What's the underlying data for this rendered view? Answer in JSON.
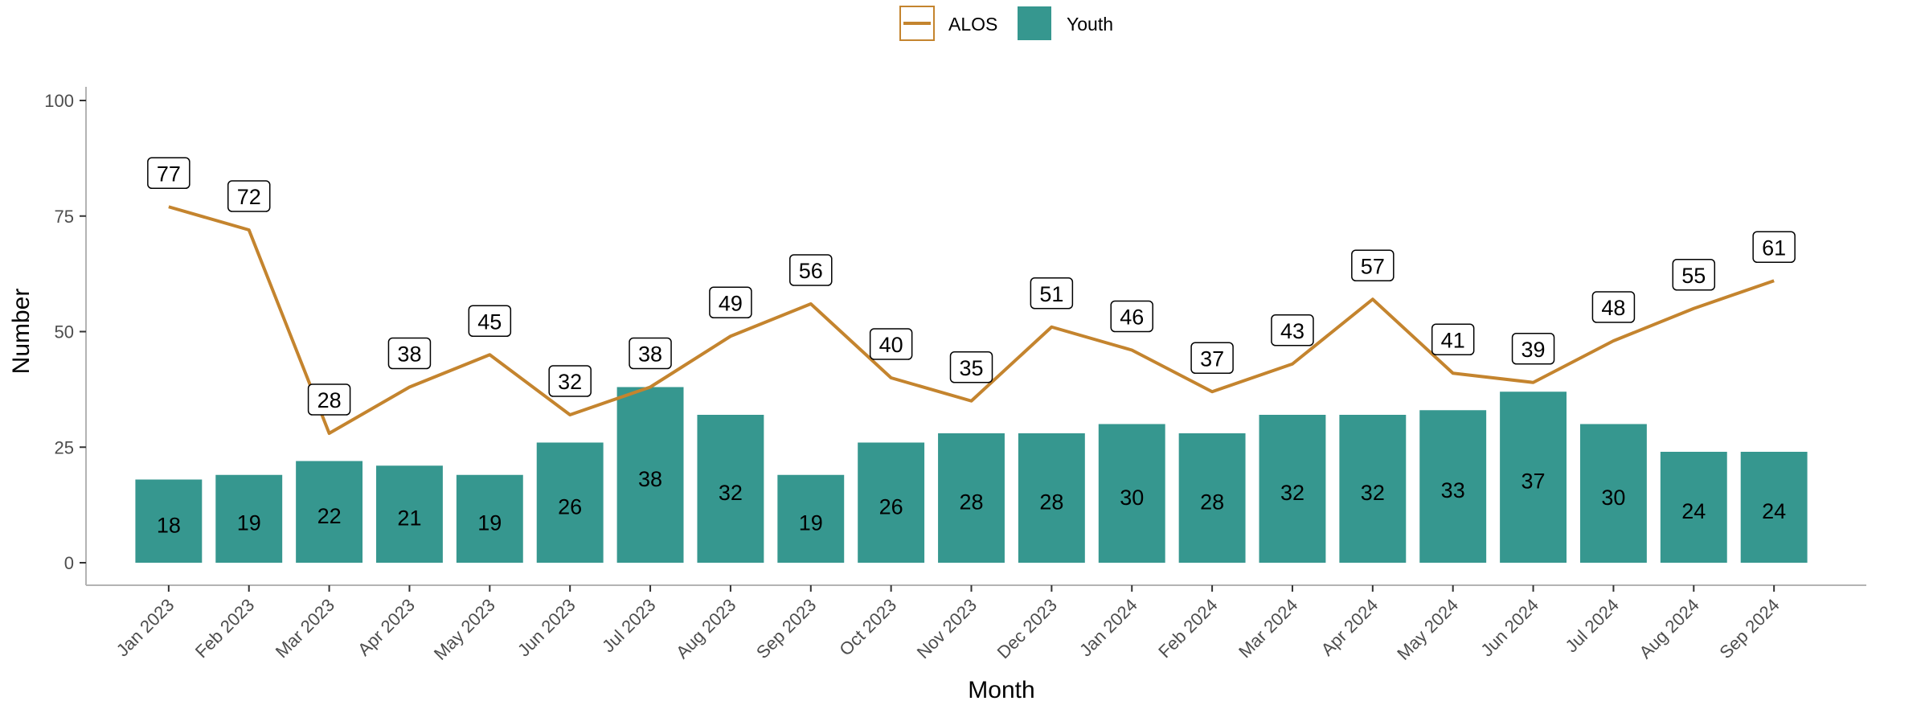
{
  "chart_data": {
    "type": "bar",
    "title": "",
    "xlabel": "Month",
    "ylabel": "Number",
    "ylim": [
      0,
      100
    ],
    "yticks": [
      0,
      25,
      50,
      75,
      100
    ],
    "grid": false,
    "legend_position": "top",
    "categories": [
      "Jan 2023",
      "Feb 2023",
      "Mar 2023",
      "Apr 2023",
      "May 2023",
      "Jun 2023",
      "Jul 2023",
      "Aug 2023",
      "Sep 2023",
      "Oct 2023",
      "Nov 2023",
      "Dec 2023",
      "Jan 2024",
      "Feb 2024",
      "Mar 2024",
      "Apr 2024",
      "May 2024",
      "Jun 2024",
      "Jul 2024",
      "Aug 2024",
      "Sep 2024"
    ],
    "series": [
      {
        "name": "Youth",
        "type": "bar",
        "color": "#36978F",
        "values": [
          18,
          19,
          22,
          21,
          19,
          26,
          38,
          32,
          19,
          26,
          28,
          28,
          30,
          28,
          32,
          32,
          33,
          37,
          30,
          24,
          24
        ]
      },
      {
        "name": "ALOS",
        "type": "line",
        "color": "#C4842E",
        "values": [
          77,
          72,
          28,
          38,
          45,
          32,
          38,
          49,
          56,
          40,
          35,
          51,
          46,
          37,
          43,
          57,
          41,
          39,
          48,
          55,
          61
        ]
      }
    ]
  }
}
